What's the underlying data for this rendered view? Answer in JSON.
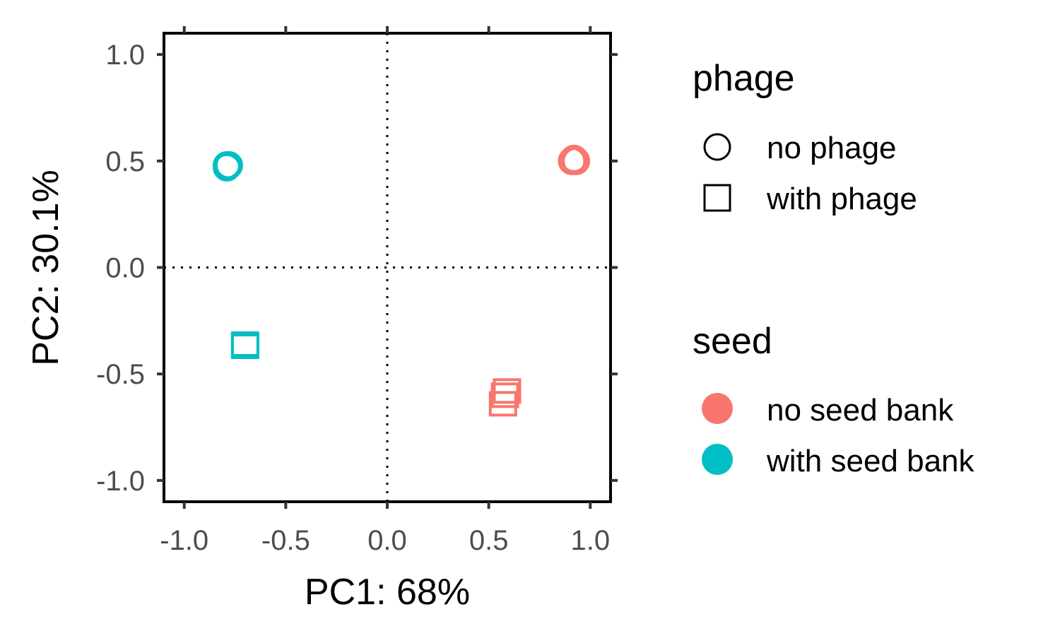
{
  "chart_data": {
    "type": "scatter",
    "xlabel": "PC1: 68%",
    "ylabel": "PC2: 30.1%",
    "xlim": [
      -1.1,
      1.1
    ],
    "ylim": [
      -1.1,
      1.1
    ],
    "x_ticks": [
      -1.0,
      -0.5,
      0.0,
      0.5,
      1.0
    ],
    "y_ticks": [
      -1.0,
      -0.5,
      0.0,
      0.5,
      1.0
    ],
    "x_tick_labels": [
      "-1.0",
      "-0.5",
      "0.0",
      "0.5",
      "1.0"
    ],
    "y_tick_labels": [
      "-1.0",
      "-0.5",
      "0.0",
      "0.5",
      "1.0"
    ],
    "reference_lines": {
      "x": 0,
      "y": 0,
      "style": "dotted"
    },
    "grid": false,
    "legend_position": "right",
    "legends": [
      {
        "title": "phage",
        "items": [
          {
            "label": "no phage",
            "shape": "circle"
          },
          {
            "label": "with phage",
            "shape": "square"
          }
        ]
      },
      {
        "title": "seed",
        "items": [
          {
            "label": "no seed bank",
            "color": "#F8766D"
          },
          {
            "label": "with seed bank",
            "color": "#00BFC4"
          }
        ]
      }
    ],
    "points": [
      {
        "x": -0.79,
        "y": 0.47,
        "phage": "no phage",
        "seed": "with seed bank"
      },
      {
        "x": -0.78,
        "y": 0.48,
        "phage": "no phage",
        "seed": "with seed bank"
      },
      {
        "x": -0.79,
        "y": 0.48,
        "phage": "no phage",
        "seed": "with seed bank"
      },
      {
        "x": -0.7,
        "y": -0.37,
        "phage": "with phage",
        "seed": "with seed bank"
      },
      {
        "x": -0.7,
        "y": -0.36,
        "phage": "with phage",
        "seed": "with seed bank"
      },
      {
        "x": 0.91,
        "y": 0.5,
        "phage": "no phage",
        "seed": "no seed bank"
      },
      {
        "x": 0.93,
        "y": 0.5,
        "phage": "no phage",
        "seed": "no seed bank"
      },
      {
        "x": 0.92,
        "y": 0.51,
        "phage": "no phage",
        "seed": "no seed bank"
      },
      {
        "x": 0.57,
        "y": -0.64,
        "phage": "with phage",
        "seed": "no seed bank"
      },
      {
        "x": 0.58,
        "y": -0.6,
        "phage": "with phage",
        "seed": "no seed bank"
      },
      {
        "x": 0.59,
        "y": -0.58,
        "phage": "with phage",
        "seed": "no seed bank"
      }
    ]
  }
}
